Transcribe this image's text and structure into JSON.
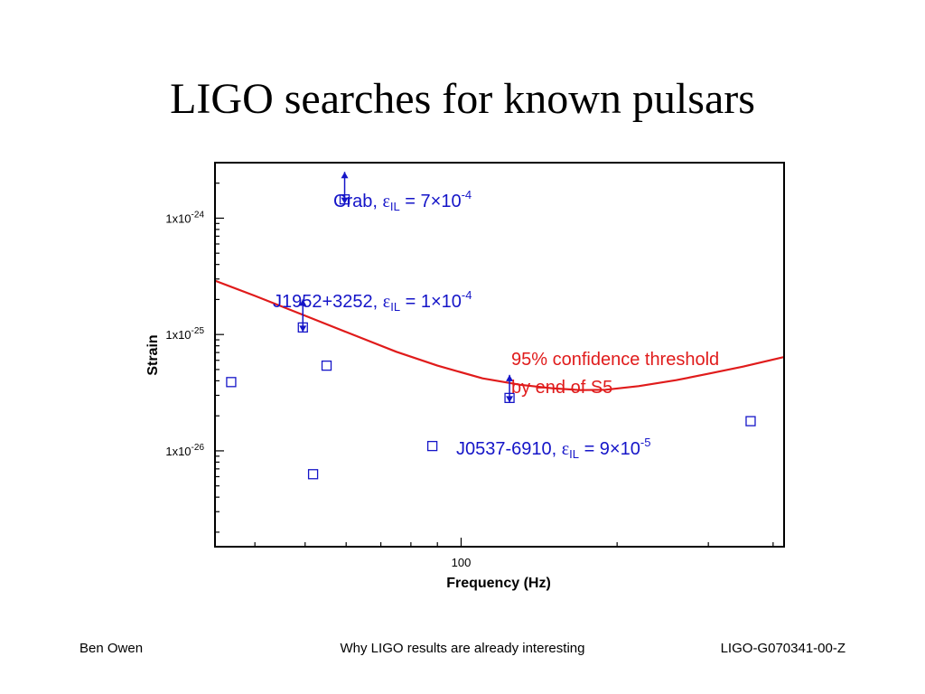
{
  "slide": {
    "title": "LIGO searches for known pulsars",
    "footer": {
      "left": "Ben Owen",
      "center": "Why LIGO results are already interesting",
      "right": "LIGO-G070341-00-Z"
    }
  },
  "chart_data": {
    "type": "scatter",
    "xlabel": "Frequency (Hz)",
    "ylabel": "Strain",
    "x_scale": "log",
    "y_scale": "log",
    "xlim": [
      33.5,
      420
    ],
    "ylim": [
      1.5e-27,
      3e-24
    ],
    "x_tick_labels": [
      {
        "value": 100,
        "label": "100"
      }
    ],
    "y_tick_labels": [
      {
        "value": 1e-24,
        "label": "1x10",
        "exp": "-24"
      },
      {
        "value": 1e-25,
        "label": "1x10",
        "exp": "-25"
      },
      {
        "value": 1e-26,
        "label": "1x10",
        "exp": "-26"
      }
    ],
    "points": [
      {
        "x": 36.0,
        "y": 3.9e-26
      },
      {
        "x": 49.5,
        "y": 1.15e-25
      },
      {
        "x": 51.8,
        "y": 6.3e-27
      },
      {
        "x": 55.0,
        "y": 5.4e-26
      },
      {
        "x": 59.6,
        "y": 1.45e-24
      },
      {
        "x": 88.0,
        "y": 1.1e-26
      },
      {
        "x": 124.0,
        "y": 2.85e-26
      },
      {
        "x": 362.0,
        "y": 1.8e-26
      }
    ],
    "upper_limit_arrows": [
      {
        "x": 59.6,
        "y_from": 1.45e-24,
        "y_to": 2.5e-24
      },
      {
        "x": 49.5,
        "y_from": 1.15e-25,
        "y_to": 2e-25
      },
      {
        "x": 124.0,
        "y_from": 2.85e-26,
        "y_to": 4.5e-26
      }
    ],
    "threshold_curve": {
      "color": "#e01b1b",
      "x": [
        33.5,
        40,
        50,
        60,
        75,
        90,
        110,
        130,
        150,
        170,
        190,
        220,
        260,
        300,
        350,
        420
      ],
      "y": [
        2.9e-25,
        2.15e-25,
        1.45e-25,
        1.05e-25,
        7.1e-26,
        5.4e-26,
        4.2e-26,
        3.7e-26,
        3.45e-26,
        3.33e-26,
        3.35e-26,
        3.6e-26,
        4.05e-26,
        4.6e-26,
        5.3e-26,
        6.4e-26
      ]
    },
    "annotations": {
      "crab": {
        "name": "Crab,",
        "eps": "ε",
        "sub": "IL",
        "eq": " = 7×10",
        "exp": "-4"
      },
      "j1952": {
        "name": "J1952+3252,",
        "eps": "ε",
        "sub": "IL",
        "eq": " = 1×10",
        "exp": "-4"
      },
      "j0537": {
        "name": "J0537-6910,",
        "eps": "ε",
        "sub": "IL",
        "eq": " = 9×10",
        "exp": "-5"
      },
      "threshold_line1": "95% confidence threshold",
      "threshold_line2": "by end of S5"
    },
    "colors": {
      "points": "#1515c8",
      "threshold": "#e01b1b",
      "axes": "#000000"
    }
  }
}
